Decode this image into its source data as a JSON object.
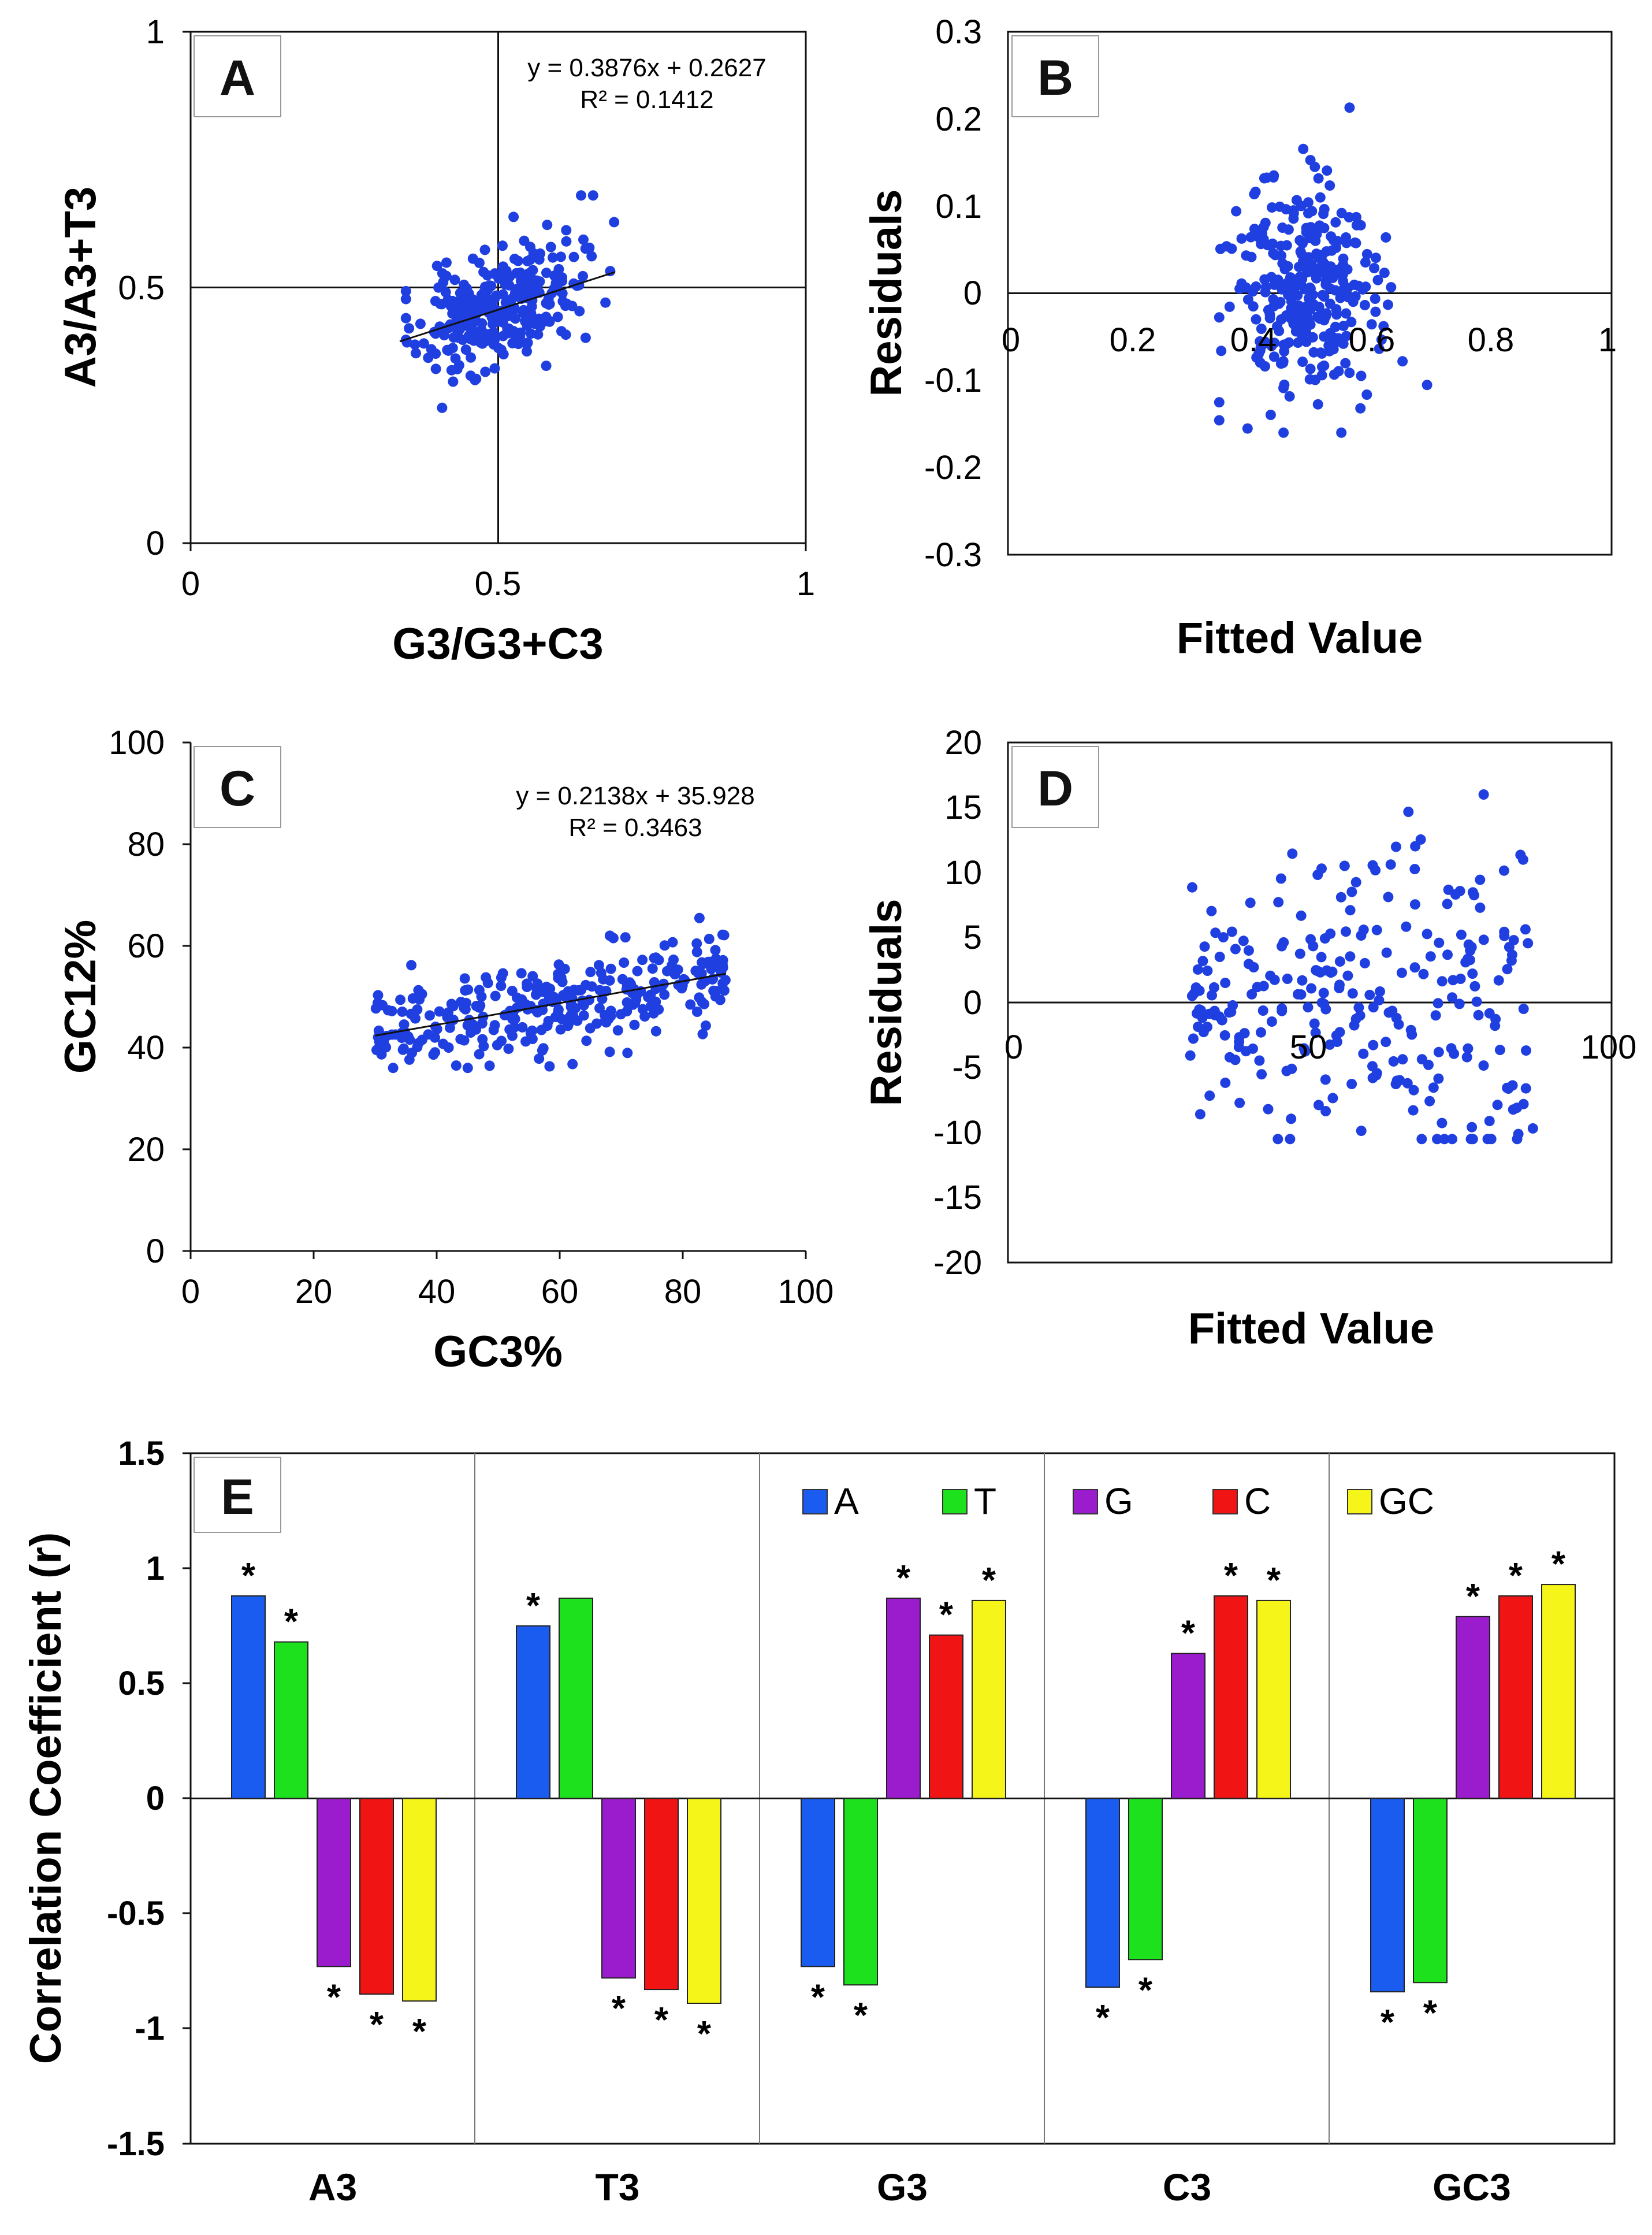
{
  "colors": {
    "point": "#1f3fe0",
    "A": "#1a5cf0",
    "T": "#1ee11e",
    "G": "#9a1ccc",
    "C": "#f01414",
    "GC": "#f5f51a"
  },
  "chart_data": [
    {
      "panel": "A",
      "type": "scatter",
      "xlabel": "G3/G3+C3",
      "ylabel": "A3/A3+T3",
      "xlim": [
        0,
        1
      ],
      "ylim": [
        0,
        1
      ],
      "xticks": [
        "0",
        "0.5",
        "1"
      ],
      "yticks": [
        "0",
        "0.5",
        "1"
      ],
      "equation": "y = 0.3876x + 0.2627",
      "r2": "R² = 0.1412",
      "fit": {
        "slope": 0.3876,
        "intercept": 0.2627,
        "x_range": [
          0.34,
          0.69
        ]
      },
      "points": {
        "n": 300,
        "x_center": 0.5,
        "x_sd": 0.065,
        "y_noise_sd": 0.055,
        "seed": 11
      }
    },
    {
      "panel": "B",
      "type": "scatter",
      "xlabel": "Fitted Value",
      "ylabel": "Residuals",
      "xlim": [
        0,
        1
      ],
      "ylim": [
        -0.3,
        0.3
      ],
      "xticks": [
        "0",
        "0.2",
        "0.4",
        "0.6",
        "0.8",
        "1"
      ],
      "yticks": [
        "-0.3",
        "-0.2",
        "-0.1",
        "0",
        "0.1",
        "0.2",
        "0.3"
      ],
      "points": {
        "n": 300,
        "x_center": 0.49,
        "x_sd": 0.06,
        "y_sd": 0.065,
        "seed": 23
      }
    },
    {
      "panel": "C",
      "type": "scatter",
      "xlabel": "GC3%",
      "ylabel": "GC12%",
      "xlim": [
        0,
        100
      ],
      "ylim": [
        0,
        100
      ],
      "xticks": [
        "0",
        "20",
        "40",
        "60",
        "80",
        "100"
      ],
      "yticks": [
        "0",
        "20",
        "40",
        "60",
        "80",
        "100"
      ],
      "equation": "y = 0.2138x + 35.928",
      "r2": "R² = 0.3463",
      "fit": {
        "slope": 0.2138,
        "intercept": 35.928,
        "x_range": [
          30,
          87
        ]
      },
      "points": {
        "n": 300,
        "x_min": 30,
        "x_max": 87,
        "y_noise_sd": 4.5,
        "seed": 37
      }
    },
    {
      "panel": "D",
      "type": "scatter",
      "xlabel": "Fitted Value",
      "ylabel": "Residuals",
      "xlim": [
        0,
        100
      ],
      "ylim": [
        -20,
        20
      ],
      "xticks": [
        "0",
        "50",
        "100"
      ],
      "yticks": [
        "-20",
        "-15",
        "-10",
        "-5",
        "0",
        "5",
        "10",
        "15",
        "20"
      ],
      "points": {
        "n": 260,
        "x_min": 30,
        "x_max": 87,
        "y_sd": 5.5,
        "seed": 51
      }
    },
    {
      "panel": "E",
      "type": "bar",
      "ylabel": "Correlation Coefficient (r)",
      "ylim": [
        -1.5,
        1.5
      ],
      "yticks": [
        "-1.5",
        "-1",
        "-0.5",
        "0",
        "0.5",
        "1",
        "1.5"
      ],
      "categories": [
        "A3",
        "T3",
        "G3",
        "C3",
        "GC3"
      ],
      "series": [
        {
          "name": "A",
          "values": [
            0.88,
            0.75,
            -0.73,
            -0.82,
            -0.84
          ],
          "significant": [
            true,
            true,
            true,
            true,
            true
          ]
        },
        {
          "name": "T",
          "values": [
            0.68,
            0.87,
            -0.81,
            -0.7,
            -0.8
          ],
          "significant": [
            true,
            false,
            true,
            true,
            true
          ]
        },
        {
          "name": "G",
          "values": [
            -0.73,
            -0.78,
            0.87,
            0.63,
            0.79
          ],
          "significant": [
            true,
            true,
            true,
            true,
            true
          ]
        },
        {
          "name": "C",
          "values": [
            -0.85,
            -0.83,
            0.71,
            0.88,
            0.88
          ],
          "significant": [
            true,
            true,
            true,
            true,
            true
          ]
        },
        {
          "name": "GC",
          "values": [
            -0.88,
            -0.89,
            0.86,
            0.86,
            0.93
          ],
          "significant": [
            true,
            true,
            true,
            true,
            true
          ]
        }
      ],
      "star_label": "*",
      "legend": [
        "A",
        "T",
        "G",
        "C",
        "GC"
      ]
    }
  ]
}
